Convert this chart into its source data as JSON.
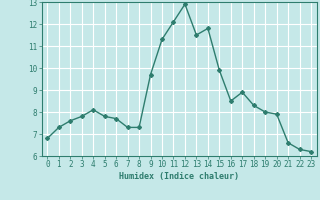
{
  "x": [
    0,
    1,
    2,
    3,
    4,
    5,
    6,
    7,
    8,
    9,
    10,
    11,
    12,
    13,
    14,
    15,
    16,
    17,
    18,
    19,
    20,
    21,
    22,
    23
  ],
  "y": [
    6.8,
    7.3,
    7.6,
    7.8,
    8.1,
    7.8,
    7.7,
    7.3,
    7.3,
    9.7,
    11.3,
    12.1,
    12.9,
    11.5,
    11.8,
    9.9,
    8.5,
    8.9,
    8.3,
    8.0,
    7.9,
    6.6,
    6.3,
    6.2
  ],
  "line_color": "#2e7d6e",
  "marker": "D",
  "marker_size": 2.0,
  "bg_color": "#c5e8e8",
  "grid_color": "#ffffff",
  "xlabel": "Humidex (Indice chaleur)",
  "xlim": [
    -0.5,
    23.5
  ],
  "ylim": [
    6,
    13
  ],
  "yticks": [
    6,
    7,
    8,
    9,
    10,
    11,
    12,
    13
  ],
  "xticks": [
    0,
    1,
    2,
    3,
    4,
    5,
    6,
    7,
    8,
    9,
    10,
    11,
    12,
    13,
    14,
    15,
    16,
    17,
    18,
    19,
    20,
    21,
    22,
    23
  ],
  "tick_color": "#2e7d6e",
  "label_color": "#2e7d6e",
  "linewidth": 1.0,
  "xlabel_fontsize": 6.0,
  "tick_fontsize": 5.5
}
